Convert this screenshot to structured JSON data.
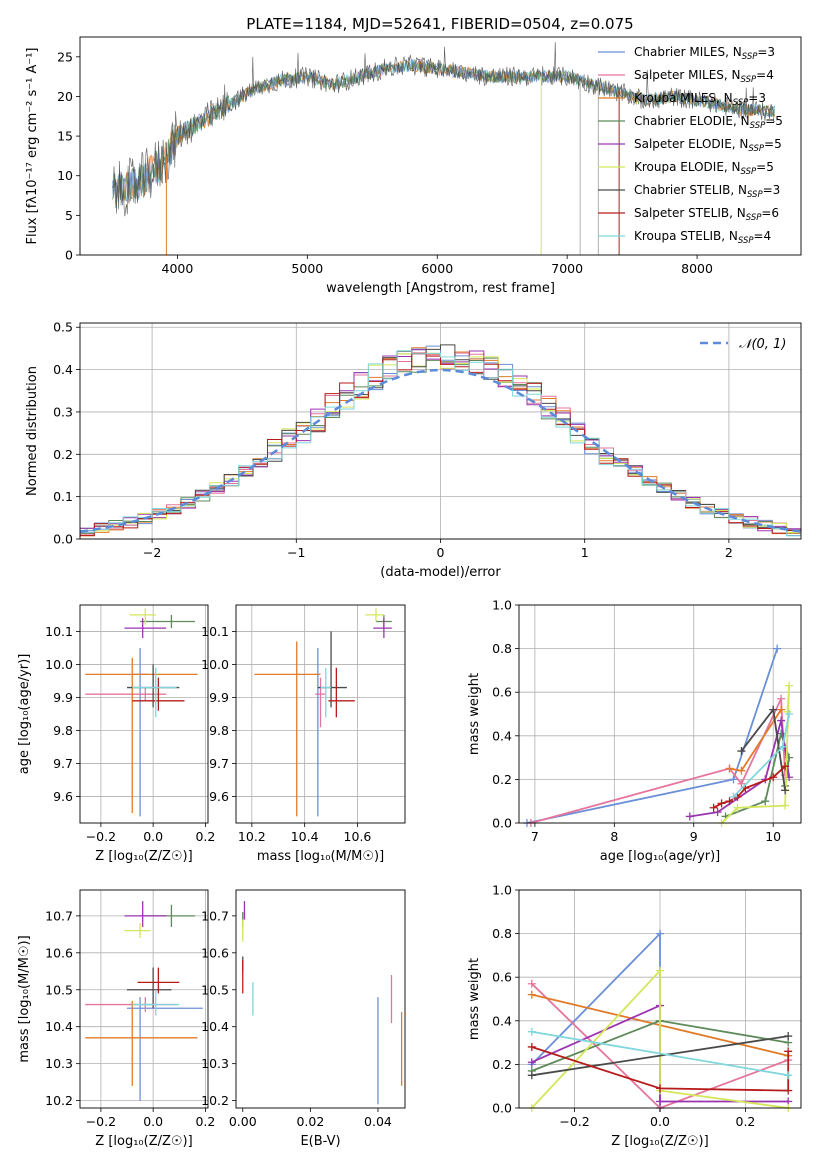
{
  "figure_title": "PLATE=1184, MJD=52641, FIBERID=0504, z=0.075",
  "chart_data": [
    {
      "id": "spectrum",
      "type": "line",
      "xlabel": "wavelength [Angstrom, rest frame]",
      "ylabel": "Flux [fλ10⁻¹⁷ erg cm⁻² s⁻¹ A⁻¹]",
      "xlim": [
        3250,
        8800
      ],
      "ylim": [
        0,
        27.5
      ],
      "xticks": [
        4000,
        5000,
        6000,
        7000,
        8000
      ],
      "yticks": [
        0,
        5,
        10,
        15,
        20,
        25
      ],
      "grid": false,
      "legend_position": "top-right",
      "legend": [
        {
          "label": "Chabrier MILES, N",
          "sub": "SSP",
          "tail": "=3",
          "color": "#6b8fd8"
        },
        {
          "label": "Salpeter MILES, N",
          "sub": "SSP",
          "tail": "=4",
          "color": "#e6759d"
        },
        {
          "label": "Kroupa MILES, N",
          "sub": "SSP",
          "tail": "=3",
          "color": "#e07b2a"
        },
        {
          "label": "Chabrier ELODIE, N",
          "sub": "SSP",
          "tail": "=5",
          "color": "#5e8a5a"
        },
        {
          "label": "Salpeter ELODIE, N",
          "sub": "SSP",
          "tail": "=5",
          "color": "#9b34b0"
        },
        {
          "label": "Kroupa ELODIE, N",
          "sub": "SSP",
          "tail": "=5",
          "color": "#d4e65a"
        },
        {
          "label": "Chabrier STELIB, N",
          "sub": "SSP",
          "tail": "=3",
          "color": "#4a4a4a"
        },
        {
          "label": "Salpeter STELIB, N",
          "sub": "SSP",
          "tail": "=6",
          "color": "#b71c1c"
        },
        {
          "label": "Kroupa STELIB, N",
          "sub": "SSP",
          "tail": "=4",
          "color": "#7fd6dc"
        }
      ],
      "continuum_points": [
        [
          3500,
          8
        ],
        [
          3700,
          9
        ],
        [
          3900,
          12
        ],
        [
          4000,
          15
        ],
        [
          4200,
          17
        ],
        [
          4400,
          19
        ],
        [
          4600,
          21
        ],
        [
          4800,
          22
        ],
        [
          5000,
          22.5
        ],
        [
          5200,
          21.5
        ],
        [
          5400,
          22.5
        ],
        [
          5600,
          23.5
        ],
        [
          5800,
          24
        ],
        [
          6000,
          23.5
        ],
        [
          6200,
          23
        ],
        [
          6400,
          22.5
        ],
        [
          6600,
          22.5
        ],
        [
          6800,
          22.5
        ],
        [
          7000,
          22.5
        ],
        [
          7200,
          21.5
        ],
        [
          7400,
          20.5
        ],
        [
          7600,
          19.5
        ],
        [
          7800,
          20
        ],
        [
          8000,
          19.5
        ],
        [
          8300,
          18.5
        ],
        [
          8600,
          18
        ]
      ],
      "series_colors": [
        "#7fd6dc",
        "#e07b2a",
        "#6b8fd8",
        "#5e8a5a",
        "#4a4a4a"
      ],
      "drop_lines": [
        {
          "x": 3915,
          "color": "#e07b2a"
        },
        {
          "x": 6800,
          "color": "#d4e65a"
        },
        {
          "x": 7100,
          "color": "#b0b0b0"
        },
        {
          "x": 7240,
          "color": "#b0b0b0"
        },
        {
          "x": 7400,
          "color": "#b71c1c"
        }
      ]
    },
    {
      "id": "residual-histogram",
      "type": "bar",
      "xlabel": "(data-model)/error",
      "ylabel": "Normed distribution",
      "xlim": [
        -2.5,
        2.5
      ],
      "ylim": [
        0,
        0.51
      ],
      "xticks": [
        -2,
        -1,
        0,
        1,
        2
      ],
      "yticks": [
        0.0,
        0.1,
        0.2,
        0.3,
        0.4,
        0.5
      ],
      "grid": true,
      "legend_position": "top-right",
      "legend": [
        {
          "label": "𝒩(0, 1)",
          "color": "#5b8bd9",
          "dashed": true
        }
      ],
      "bin_edges_start": -2.5,
      "bin_width": 0.1,
      "series_colors": [
        "#6b8fd8",
        "#e6759d",
        "#e07b2a",
        "#5e8a5a",
        "#9b34b0",
        "#d4e65a",
        "#4a4a4a",
        "#b71c1c",
        "#7fd6dc"
      ],
      "jitter_amplitude": 0.045
    },
    {
      "id": "age-vs-metallicity",
      "type": "scatter",
      "xlabel": "Z [log₁₀(Z/Z☉)]",
      "ylabel": "age  [log₁₀(age/yr)]",
      "xlim": [
        -0.28,
        0.21
      ],
      "ylim": [
        9.52,
        10.18
      ],
      "xticks": [
        -0.2,
        0.0,
        0.2
      ],
      "yticks": [
        9.6,
        9.7,
        9.8,
        9.9,
        10.0,
        10.1
      ],
      "grid": true,
      "points": [
        {
          "x": -0.05,
          "y": 9.97,
          "xerr": [
            0.03,
            0.03
          ],
          "yerr": [
            0.43,
            0.08
          ],
          "color": "#6b8fd8"
        },
        {
          "x": -0.03,
          "y": 9.91,
          "xerr": [
            0.23,
            0.08
          ],
          "yerr": [
            0.02,
            0.02
          ],
          "color": "#e6759d"
        },
        {
          "x": -0.08,
          "y": 9.97,
          "xerr": [
            0.18,
            0.25
          ],
          "yerr": [
            0.42,
            0.05
          ],
          "color": "#e07b2a"
        },
        {
          "x": 0.07,
          "y": 10.13,
          "xerr": [
            0.12,
            0.09
          ],
          "yerr": [
            0.02,
            0.02
          ],
          "color": "#5e8a5a"
        },
        {
          "x": -0.04,
          "y": 10.11,
          "xerr": [
            0.07,
            0.09
          ],
          "yerr": [
            0.03,
            0.03
          ],
          "color": "#9b34b0"
        },
        {
          "x": -0.03,
          "y": 10.15,
          "xerr": [
            0.06,
            0.04
          ],
          "yerr": [
            0.03,
            0.02
          ],
          "color": "#d4e65a"
        },
        {
          "x": 0.0,
          "y": 9.93,
          "xerr": [
            0.1,
            0.1
          ],
          "yerr": [
            0.06,
            0.07
          ],
          "color": "#4a4a4a"
        },
        {
          "x": 0.02,
          "y": 9.89,
          "xerr": [
            0.1,
            0.1
          ],
          "yerr": [
            0.03,
            0.07
          ],
          "color": "#b71c1c"
        },
        {
          "x": 0.01,
          "y": 9.93,
          "xerr": [
            0.09,
            0.08
          ],
          "yerr": [
            0.09,
            0.06
          ],
          "color": "#7fd6dc"
        }
      ]
    },
    {
      "id": "age-vs-mass",
      "type": "scatter",
      "xlabel": "mass [log₁₀(M/M☉)]",
      "ylabel": "",
      "xlim": [
        10.14,
        10.78
      ],
      "ylim": [
        9.52,
        10.18
      ],
      "xticks": [
        10.2,
        10.4,
        10.6
      ],
      "yticks": [
        9.6,
        9.7,
        9.8,
        9.9,
        10.0,
        10.1
      ],
      "grid": true,
      "points": [
        {
          "x": 10.45,
          "y": 9.97,
          "xerr": [
            0.01,
            0.01
          ],
          "yerr": [
            0.43,
            0.08
          ],
          "color": "#6b8fd8"
        },
        {
          "x": 10.46,
          "y": 9.91,
          "xerr": [
            0.02,
            0.02
          ],
          "yerr": [
            0.1,
            0.05
          ],
          "color": "#e6759d"
        },
        {
          "x": 10.37,
          "y": 9.97,
          "xerr": [
            0.16,
            0.09
          ],
          "yerr": [
            0.43,
            0.1
          ],
          "color": "#e07b2a"
        },
        {
          "x": 10.7,
          "y": 10.13,
          "xerr": [
            0.03,
            0.03
          ],
          "yerr": [
            0.02,
            0.02
          ],
          "color": "#5e8a5a"
        },
        {
          "x": 10.7,
          "y": 10.11,
          "xerr": [
            0.04,
            0.03
          ],
          "yerr": [
            0.03,
            0.03
          ],
          "color": "#9b34b0"
        },
        {
          "x": 10.67,
          "y": 10.15,
          "xerr": [
            0.04,
            0.03
          ],
          "yerr": [
            0.02,
            0.02
          ],
          "color": "#d4e65a"
        },
        {
          "x": 10.5,
          "y": 9.93,
          "xerr": [
            0.05,
            0.06
          ],
          "yerr": [
            0.06,
            0.17
          ],
          "color": "#4a4a4a"
        },
        {
          "x": 10.52,
          "y": 9.89,
          "xerr": [
            0.03,
            0.07
          ],
          "yerr": [
            0.05,
            0.1
          ],
          "color": "#b71c1c"
        },
        {
          "x": 10.48,
          "y": 9.93,
          "xerr": [
            0.02,
            0.02
          ],
          "yerr": [
            0.09,
            0.06
          ],
          "color": "#7fd6dc"
        }
      ]
    },
    {
      "id": "mass-weight-vs-age",
      "type": "line",
      "xlabel": "age  [log₁₀(age/yr)]",
      "ylabel": "mass weight",
      "xlim": [
        6.8,
        10.35
      ],
      "ylim": [
        0.0,
        1.0
      ],
      "xticks": [
        7,
        8,
        9,
        10
      ],
      "yticks": [
        0.0,
        0.2,
        0.4,
        0.6,
        0.8,
        1.0
      ],
      "grid": true,
      "series": [
        {
          "color": "#6b8fd8",
          "x": [
            6.9,
            9.5,
            10.05
          ],
          "y": [
            0.0,
            0.2,
            0.8
          ]
        },
        {
          "color": "#e6759d",
          "x": [
            6.95,
            9.45,
            9.6,
            10.1,
            10.15
          ],
          "y": [
            0.0,
            0.25,
            0.18,
            0.57,
            0.22
          ]
        },
        {
          "color": "#e07b2a",
          "x": [
            9.45,
            9.6,
            10.1
          ],
          "y": [
            0.25,
            0.24,
            0.52
          ]
        },
        {
          "color": "#5e8a5a",
          "x": [
            9.4,
            9.9,
            10.1,
            10.2,
            10.15
          ],
          "y": [
            0.03,
            0.1,
            0.41,
            0.3,
            0.17
          ]
        },
        {
          "color": "#9b34b0",
          "x": [
            8.95,
            9.3,
            9.9,
            10.1,
            10.2
          ],
          "y": [
            0.03,
            0.05,
            0.2,
            0.47,
            0.21
          ]
        },
        {
          "color": "#d4e65a",
          "x": [
            9.35,
            9.55,
            10.15,
            10.2,
            10.18
          ],
          "y": [
            0.0,
            0.07,
            0.08,
            0.63,
            0.51
          ]
        },
        {
          "color": "#4a4a4a",
          "x": [
            9.6,
            10.0,
            10.15
          ],
          "y": [
            0.33,
            0.52,
            0.15
          ]
        },
        {
          "color": "#b71c1c",
          "x": [
            9.25,
            9.35,
            9.45,
            9.55,
            9.65,
            10.0,
            10.15
          ],
          "y": [
            0.07,
            0.09,
            0.1,
            0.12,
            0.16,
            0.21,
            0.26
          ]
        },
        {
          "color": "#7fd6dc",
          "x": [
            9.5,
            10.12,
            10.2
          ],
          "y": [
            0.12,
            0.35,
            0.5
          ]
        }
      ]
    },
    {
      "id": "mass-vs-metallicity",
      "type": "scatter",
      "xlabel": "Z [log₁₀(Z/Z☉)]",
      "ylabel": "mass [log₁₀(M/M☉)]",
      "xlim": [
        -0.28,
        0.21
      ],
      "ylim": [
        10.18,
        10.77
      ],
      "xticks": [
        -0.2,
        0.0,
        0.2
      ],
      "yticks": [
        10.2,
        10.3,
        10.4,
        10.5,
        10.6,
        10.7
      ],
      "grid": true,
      "points": [
        {
          "x": -0.05,
          "y": 10.45,
          "xerr": [
            0.05,
            0.24
          ],
          "yerr": [
            0.25,
            0.03
          ],
          "color": "#6b8fd8"
        },
        {
          "x": -0.03,
          "y": 10.46,
          "xerr": [
            0.23,
            0.12
          ],
          "yerr": [
            0.02,
            0.02
          ],
          "color": "#e6759d"
        },
        {
          "x": -0.08,
          "y": 10.37,
          "xerr": [
            0.18,
            0.25
          ],
          "yerr": [
            0.13,
            0.1
          ],
          "color": "#e07b2a"
        },
        {
          "x": 0.07,
          "y": 10.7,
          "xerr": [
            0.12,
            0.09
          ],
          "yerr": [
            0.03,
            0.03
          ],
          "color": "#5e8a5a"
        },
        {
          "x": -0.04,
          "y": 10.7,
          "xerr": [
            0.07,
            0.09
          ],
          "yerr": [
            0.03,
            0.04
          ],
          "color": "#9b34b0"
        },
        {
          "x": -0.05,
          "y": 10.66,
          "xerr": [
            0.06,
            0.04
          ],
          "yerr": [
            0.02,
            0.02
          ],
          "color": "#d4e65a"
        },
        {
          "x": 0.0,
          "y": 10.5,
          "xerr": [
            0.1,
            0.07
          ],
          "yerr": [
            0.05,
            0.06
          ],
          "color": "#4a4a4a"
        },
        {
          "x": 0.02,
          "y": 10.52,
          "xerr": [
            0.08,
            0.08
          ],
          "yerr": [
            0.03,
            0.04
          ],
          "color": "#b71c1c"
        },
        {
          "x": 0.01,
          "y": 10.46,
          "xerr": [
            0.09,
            0.09
          ],
          "yerr": [
            0.03,
            0.04
          ],
          "color": "#7fd6dc"
        }
      ]
    },
    {
      "id": "mass-vs-ebv",
      "type": "scatter",
      "xlabel": "E(B-V)",
      "ylabel": "",
      "xlim": [
        -0.002,
        0.048
      ],
      "ylim": [
        10.18,
        10.77
      ],
      "xticks": [
        0.0,
        0.02,
        0.04
      ],
      "yticks": [
        10.2,
        10.3,
        10.4,
        10.5,
        10.6,
        10.7
      ],
      "grid": false,
      "points": [
        {
          "x": 0.04,
          "y": 10.41,
          "xerr": [
            0,
            0
          ],
          "yerr": [
            0.22,
            0.07
          ],
          "color": "#6b8fd8"
        },
        {
          "x": 0.044,
          "y": 10.48,
          "xerr": [
            0,
            0
          ],
          "yerr": [
            0.07,
            0.06
          ],
          "color": "#e6759d"
        },
        {
          "x": 0.047,
          "y": 10.34,
          "xerr": [
            0,
            0
          ],
          "yerr": [
            0.1,
            0.1
          ],
          "color": "#e07b2a"
        },
        {
          "x": 0.0,
          "y": 10.69,
          "xerr": [
            0,
            0
          ],
          "yerr": [
            0.02,
            0.02
          ],
          "color": "#5e8a5a"
        },
        {
          "x": 0.0005,
          "y": 10.71,
          "xerr": [
            0,
            0
          ],
          "yerr": [
            0.02,
            0.03
          ],
          "color": "#9b34b0"
        },
        {
          "x": 0.0,
          "y": 10.66,
          "xerr": [
            0,
            0
          ],
          "yerr": [
            0.03,
            0.03
          ],
          "color": "#d4e65a"
        },
        {
          "x": 0.0,
          "y": 10.57,
          "xerr": [
            0,
            0
          ],
          "yerr": [
            0.02,
            0.02
          ],
          "color": "#4a4a4a"
        },
        {
          "x": 0.0,
          "y": 10.53,
          "xerr": [
            0,
            0
          ],
          "yerr": [
            0.04,
            0.05
          ],
          "color": "#b71c1c"
        },
        {
          "x": 0.003,
          "y": 10.47,
          "xerr": [
            0,
            0
          ],
          "yerr": [
            0.04,
            0.05
          ],
          "color": "#7fd6dc"
        }
      ]
    },
    {
      "id": "mass-weight-vs-metallicity",
      "type": "line",
      "xlabel": "Z [log₁₀(Z/Z☉)]",
      "ylabel": "mass weight",
      "xlim": [
        -0.33,
        0.33
      ],
      "ylim": [
        0.0,
        1.0
      ],
      "xticks": [
        -0.2,
        0.0,
        0.2
      ],
      "yticks": [
        0.0,
        0.2,
        0.4,
        0.6,
        0.8,
        1.0
      ],
      "grid": true,
      "series": [
        {
          "color": "#6b8fd8",
          "x": [
            -0.3,
            0.0,
            0.0
          ],
          "y": [
            0.2,
            0.8,
            0.0
          ]
        },
        {
          "color": "#e6759d",
          "x": [
            -0.3,
            0.0,
            0.3
          ],
          "y": [
            0.57,
            0.0,
            0.22
          ]
        },
        {
          "color": "#e07b2a",
          "x": [
            -0.3,
            0.3
          ],
          "y": [
            0.52,
            0.24
          ]
        },
        {
          "color": "#5e8a5a",
          "x": [
            -0.3,
            0.0,
            0.3
          ],
          "y": [
            0.17,
            0.4,
            0.3
          ]
        },
        {
          "color": "#9b34b0",
          "x": [
            -0.3,
            0.0,
            0.0,
            0.3
          ],
          "y": [
            0.21,
            0.47,
            0.03,
            0.03
          ]
        },
        {
          "color": "#d4e65a",
          "x": [
            -0.3,
            0.0,
            0.0,
            0.3
          ],
          "y": [
            0.0,
            0.63,
            0.08,
            0.0
          ]
        },
        {
          "color": "#4a4a4a",
          "x": [
            -0.3,
            0.3
          ],
          "y": [
            0.15,
            0.33
          ]
        },
        {
          "color": "#b71c1c",
          "x": [
            -0.3,
            0.0,
            0.3,
            0.3
          ],
          "y": [
            0.28,
            0.09,
            0.08,
            0.26
          ]
        },
        {
          "color": "#7fd6dc",
          "x": [
            -0.3,
            0.3
          ],
          "y": [
            0.35,
            0.15
          ]
        }
      ]
    }
  ]
}
